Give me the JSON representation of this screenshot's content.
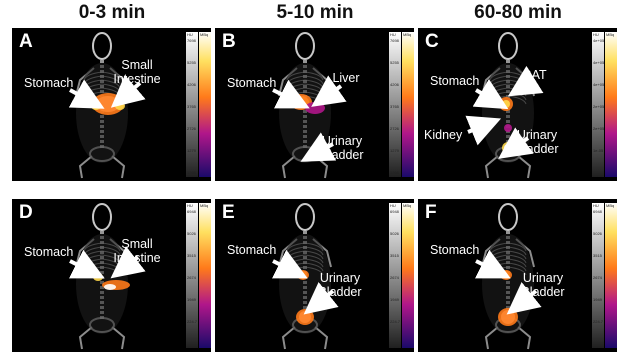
{
  "columns": [
    "0-3 min",
    "5-10 min",
    "60-80 min"
  ],
  "panels": [
    {
      "label": "A",
      "annotations": [
        "Stomach",
        "Small",
        "Intestine"
      ],
      "scale": [
        "HU",
        "MBq",
        "7698",
        "5255",
        "4206",
        "3765",
        "2726",
        "1279",
        "1265"
      ]
    },
    {
      "label": "B",
      "annotations": [
        "Stomach",
        "Liver",
        "Urinary",
        "Bladder"
      ],
      "scale": [
        "HU",
        "MBq",
        "7698",
        "5255",
        "4206",
        "3765",
        "2726",
        "1279",
        "1265"
      ]
    },
    {
      "label": "C",
      "annotations": [
        "Stomach",
        "BAT",
        "Kidney",
        "Urinary",
        "Bladder"
      ],
      "scale": [
        "HU",
        "MBq",
        "4e+05",
        "4e+05",
        "4e+05",
        "2e+05",
        "2e+05",
        "1e-05"
      ]
    },
    {
      "label": "D",
      "annotations": [
        "Stomach",
        "Small",
        "Intestine"
      ],
      "scale": [
        "HU",
        "MBq",
        "6948",
        "5026",
        "3515",
        "2674",
        "1949",
        "224.7"
      ]
    },
    {
      "label": "E",
      "annotations": [
        "Stomach",
        "Urinary",
        "Bladder"
      ],
      "scale": [
        "HU",
        "MBq",
        "6948",
        "5026",
        "3515",
        "2674",
        "1949",
        "224.7"
      ]
    },
    {
      "label": "F",
      "annotations": [
        "Stomach",
        "Urinary",
        "Bladder"
      ],
      "scale": [
        "HU",
        "MBq",
        "6948",
        "5026",
        "3515",
        "2674",
        "1949",
        "224.7"
      ]
    }
  ],
  "colors": {
    "panel_bg": "#000000",
    "bone": "#c8c8c8",
    "hot_white": "#ffffff",
    "hot_yellow": "#ffd84a",
    "hot_orange": "#ff7a1a",
    "hot_magenta": "#b0168a",
    "arrow": "#ffffff"
  }
}
